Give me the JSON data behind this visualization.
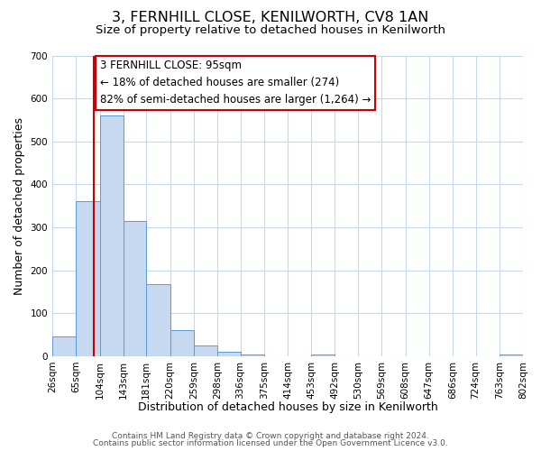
{
  "title": "3, FERNHILL CLOSE, KENILWORTH, CV8 1AN",
  "subtitle": "Size of property relative to detached houses in Kenilworth",
  "xlabel": "Distribution of detached houses by size in Kenilworth",
  "ylabel": "Number of detached properties",
  "bin_edges": [
    26,
    65,
    104,
    143,
    181,
    220,
    259,
    298,
    336,
    375,
    414,
    453,
    492,
    530,
    569,
    608,
    647,
    686,
    724,
    763,
    802
  ],
  "bin_counts": [
    45,
    360,
    560,
    315,
    168,
    60,
    25,
    10,
    4,
    0,
    0,
    3,
    0,
    0,
    0,
    0,
    0,
    0,
    0,
    4
  ],
  "bar_color": "#c6d9f0",
  "bar_edge_color": "#5b9bd5",
  "property_line_x": 95,
  "property_line_color": "#cc0000",
  "annotation_text": "3 FERNHILL CLOSE: 95sqm\n← 18% of detached houses are smaller (274)\n82% of semi-detached houses are larger (1,264) →",
  "annotation_box_color": "#ffffff",
  "annotation_box_edge_color": "#cc0000",
  "ylim": [
    0,
    700
  ],
  "yticks": [
    0,
    100,
    200,
    300,
    400,
    500,
    600,
    700
  ],
  "tick_labels": [
    "26sqm",
    "65sqm",
    "104sqm",
    "143sqm",
    "181sqm",
    "220sqm",
    "259sqm",
    "298sqm",
    "336sqm",
    "375sqm",
    "414sqm",
    "453sqm",
    "492sqm",
    "530sqm",
    "569sqm",
    "608sqm",
    "647sqm",
    "686sqm",
    "724sqm",
    "763sqm",
    "802sqm"
  ],
  "footer_line1": "Contains HM Land Registry data © Crown copyright and database right 2024.",
  "footer_line2": "Contains public sector information licensed under the Open Government Licence v3.0.",
  "background_color": "#ffffff",
  "grid_color": "#c8d8ea",
  "title_fontsize": 11.5,
  "subtitle_fontsize": 9.5,
  "axis_label_fontsize": 9,
  "tick_fontsize": 7.5,
  "annotation_fontsize": 8.5,
  "footer_fontsize": 6.5
}
